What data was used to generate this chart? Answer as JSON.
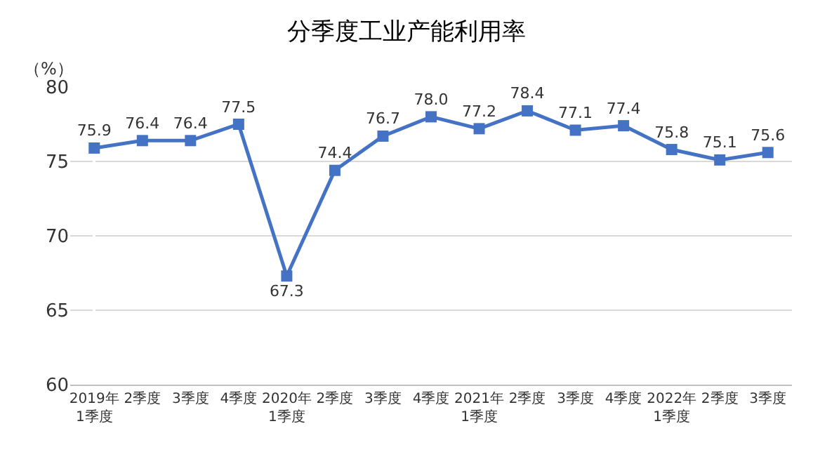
{
  "chart_data": {
    "type": "line",
    "title": "分季度工业产能利用率",
    "ylabel": "（%）",
    "categories": [
      "2019年\n1季度",
      "2季度",
      "3季度",
      "4季度",
      "2020年\n1季度",
      "2季度",
      "3季度",
      "4季度",
      "2021年\n1季度",
      "2季度",
      "3季度",
      "4季度",
      "2022年\n1季度",
      "2季度",
      "3季度"
    ],
    "series": [
      {
        "color": "#4472c4",
        "values": [
          75.9,
          76.4,
          76.4,
          77.5,
          67.3,
          74.4,
          76.7,
          78.0,
          77.2,
          78.4,
          77.1,
          77.4,
          75.8,
          75.1,
          75.6
        ],
        "value_labels": [
          "75.9",
          "76.4",
          "76.4",
          "77.5",
          "67.3",
          "74.4",
          "76.7",
          "78.0",
          "77.2",
          "78.4",
          "77.1",
          "77.4",
          "75.8",
          "75.1",
          "75.6"
        ]
      }
    ],
    "ylim": [
      60,
      80
    ],
    "yticks": [
      60,
      65,
      70,
      75,
      80
    ],
    "grid": "y",
    "marker": "square",
    "line_style": "solid"
  }
}
